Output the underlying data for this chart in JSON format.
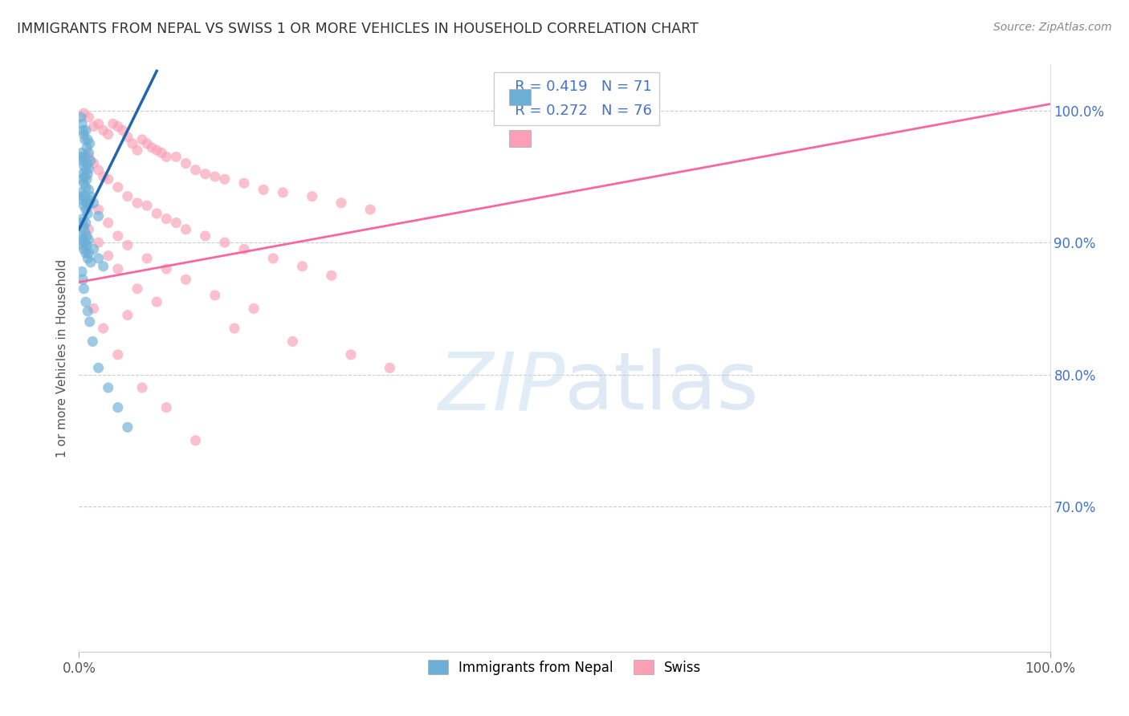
{
  "title": "IMMIGRANTS FROM NEPAL VS SWISS 1 OR MORE VEHICLES IN HOUSEHOLD CORRELATION CHART",
  "source": "Source: ZipAtlas.com",
  "ylabel": "1 or more Vehicles in Household",
  "legend1_label": "Immigrants from Nepal",
  "legend2_label": "Swiss",
  "R1": 0.419,
  "N1": 71,
  "R2": 0.272,
  "N2": 76,
  "color1": "#6baed6",
  "color2": "#fa9fb5",
  "trendline1_color": "#2166ac",
  "trendline2_color": "#f768a1",
  "background_color": "#ffffff",
  "watermark_zip": "ZIP",
  "watermark_atlas": "atlas",
  "xlim": [
    0.0,
    100.0
  ],
  "ylim": [
    59.0,
    103.5
  ],
  "right_yticks": [
    70.0,
    80.0,
    90.0,
    100.0
  ],
  "right_ytick_labels": [
    "70.0%",
    "80.0%",
    "90.0%",
    "100.0%"
  ],
  "nepal_x": [
    0.2,
    0.3,
    0.4,
    0.5,
    0.6,
    0.7,
    0.8,
    0.9,
    1.0,
    1.1,
    0.2,
    0.3,
    0.4,
    0.5,
    0.6,
    0.7,
    0.8,
    0.9,
    1.0,
    1.2,
    0.3,
    0.4,
    0.5,
    0.6,
    0.7,
    0.8,
    1.0,
    1.2,
    1.5,
    2.0,
    0.2,
    0.3,
    0.4,
    0.5,
    0.6,
    0.7,
    0.8,
    0.9,
    1.0,
    1.1,
    0.3,
    0.4,
    0.5,
    0.6,
    0.7,
    0.8,
    1.0,
    1.5,
    2.0,
    2.5,
    0.2,
    0.3,
    0.4,
    0.5,
    0.6,
    0.7,
    0.8,
    0.9,
    1.0,
    1.2,
    0.3,
    0.4,
    0.5,
    0.7,
    0.9,
    1.1,
    1.4,
    2.0,
    3.0,
    4.0,
    5.0
  ],
  "nepal_y": [
    99.5,
    99.0,
    98.5,
    98.2,
    97.8,
    98.5,
    97.2,
    97.8,
    96.8,
    97.5,
    96.5,
    96.8,
    96.2,
    95.8,
    96.5,
    95.5,
    96.0,
    95.2,
    95.6,
    96.2,
    94.8,
    95.2,
    94.5,
    95.0,
    94.2,
    94.8,
    94.0,
    93.5,
    93.0,
    92.0,
    93.8,
    93.5,
    93.2,
    92.8,
    93.5,
    92.5,
    93.0,
    92.2,
    92.8,
    93.2,
    91.5,
    91.8,
    91.2,
    90.8,
    91.5,
    90.5,
    90.2,
    89.5,
    88.8,
    88.2,
    90.5,
    90.2,
    89.8,
    89.5,
    90.0,
    89.2,
    89.8,
    88.8,
    89.2,
    88.5,
    87.8,
    87.2,
    86.5,
    85.5,
    84.8,
    84.0,
    82.5,
    80.5,
    79.0,
    77.5,
    76.0
  ],
  "swiss_x": [
    0.5,
    1.0,
    1.5,
    2.0,
    2.5,
    3.0,
    3.5,
    4.0,
    4.5,
    5.0,
    5.5,
    6.0,
    6.5,
    7.0,
    7.5,
    8.0,
    8.5,
    9.0,
    10.0,
    11.0,
    12.0,
    13.0,
    14.0,
    15.0,
    17.0,
    19.0,
    21.0,
    24.0,
    27.0,
    30.0,
    1.0,
    1.5,
    2.0,
    2.5,
    3.0,
    4.0,
    5.0,
    6.0,
    7.0,
    8.0,
    9.0,
    10.0,
    11.0,
    13.0,
    15.0,
    17.0,
    20.0,
    23.0,
    26.0,
    2.0,
    3.0,
    4.0,
    5.0,
    7.0,
    9.0,
    11.0,
    14.0,
    18.0,
    1.0,
    2.0,
    3.0,
    4.0,
    6.0,
    8.0,
    5.0,
    16.0,
    22.0,
    28.0,
    32.0,
    1.5,
    2.5,
    4.0,
    6.5,
    9.0,
    12.0
  ],
  "swiss_y": [
    99.8,
    99.5,
    98.8,
    99.0,
    98.5,
    98.2,
    99.0,
    98.8,
    98.5,
    98.0,
    97.5,
    97.0,
    97.8,
    97.5,
    97.2,
    97.0,
    96.8,
    96.5,
    96.5,
    96.0,
    95.5,
    95.2,
    95.0,
    94.8,
    94.5,
    94.0,
    93.8,
    93.5,
    93.0,
    92.5,
    96.5,
    96.0,
    95.5,
    95.0,
    94.8,
    94.2,
    93.5,
    93.0,
    92.8,
    92.2,
    91.8,
    91.5,
    91.0,
    90.5,
    90.0,
    89.5,
    88.8,
    88.2,
    87.5,
    92.5,
    91.5,
    90.5,
    89.8,
    88.8,
    88.0,
    87.2,
    86.0,
    85.0,
    91.0,
    90.0,
    89.0,
    88.0,
    86.5,
    85.5,
    84.5,
    83.5,
    82.5,
    81.5,
    80.5,
    85.0,
    83.5,
    81.5,
    79.0,
    77.5,
    75.0
  ]
}
